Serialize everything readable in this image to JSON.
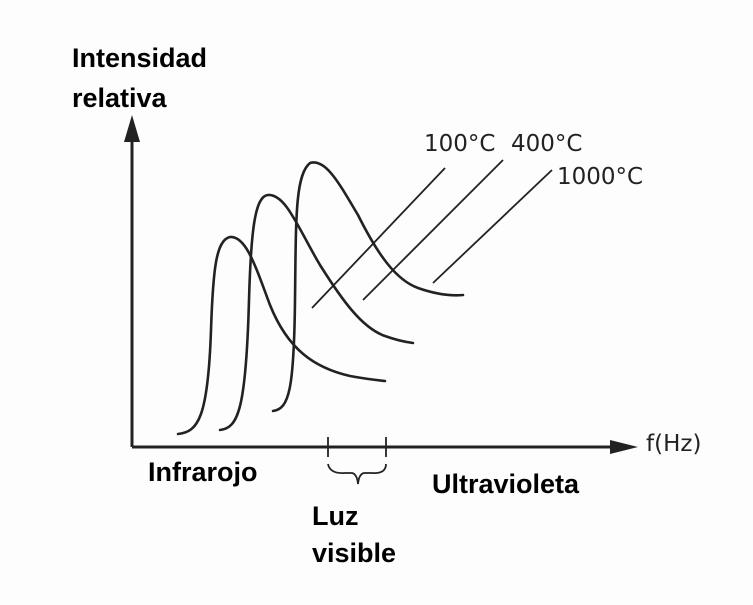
{
  "y_axis_label": [
    "Intensidad",
    "relativa"
  ],
  "x_axis_label": "f(Hz)",
  "curve_labels": [
    "100°C",
    "400°C",
    "1000°C"
  ],
  "region_left": "Infrarojo",
  "region_right": "Ultravioleta",
  "visible_band_label": [
    "Luz",
    "visible"
  ]
}
